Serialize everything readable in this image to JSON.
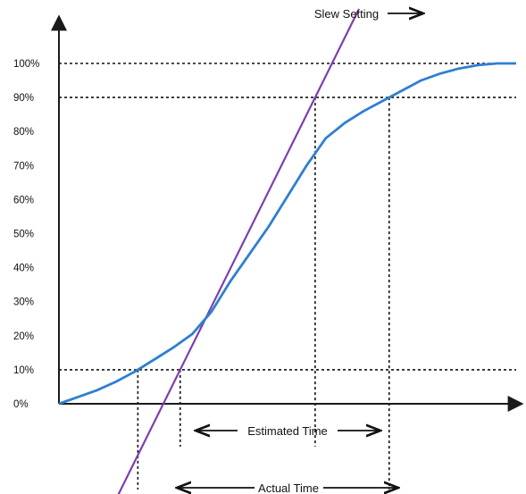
{
  "chart_data": {
    "type": "line",
    "yticks": [
      "0%",
      "10%",
      "20%",
      "30%",
      "40%",
      "50%",
      "60%",
      "70%",
      "80%",
      "90%",
      "100%"
    ],
    "ylim": [
      0,
      100
    ],
    "grid": false,
    "series": [
      {
        "values": [
          [
            0,
            0
          ],
          [
            20,
            2
          ],
          [
            40,
            4
          ],
          [
            60,
            6.5
          ],
          [
            80,
            9.5
          ],
          [
            100,
            13
          ],
          [
            120,
            16.5
          ],
          [
            140,
            20.5
          ],
          [
            160,
            27
          ],
          [
            180,
            36
          ],
          [
            200,
            44
          ],
          [
            220,
            52
          ],
          [
            240,
            61
          ],
          [
            260,
            70
          ],
          [
            280,
            78
          ],
          [
            300,
            82.5
          ],
          [
            320,
            86
          ],
          [
            340,
            89
          ],
          [
            360,
            92
          ],
          [
            380,
            95
          ],
          [
            400,
            97
          ],
          [
            420,
            98.5
          ],
          [
            440,
            99.5
          ],
          [
            460,
            100
          ],
          [
            480,
            100
          ]
        ]
      },
      {
        "values": [
          [
            60,
            -28
          ],
          [
            165,
            28
          ],
          [
            260,
            84
          ],
          [
            315,
            116
          ]
        ]
      }
    ],
    "reference_levels": [
      10,
      90,
      100
    ],
    "annotations": {
      "slew": "Slew Setting",
      "estimated": "Estimated Time",
      "actual": "Actual Time"
    },
    "colors": {
      "curve": "#2f7fd1",
      "slew_line": "#7b3fb0",
      "axis": "#1a1a1a"
    }
  }
}
